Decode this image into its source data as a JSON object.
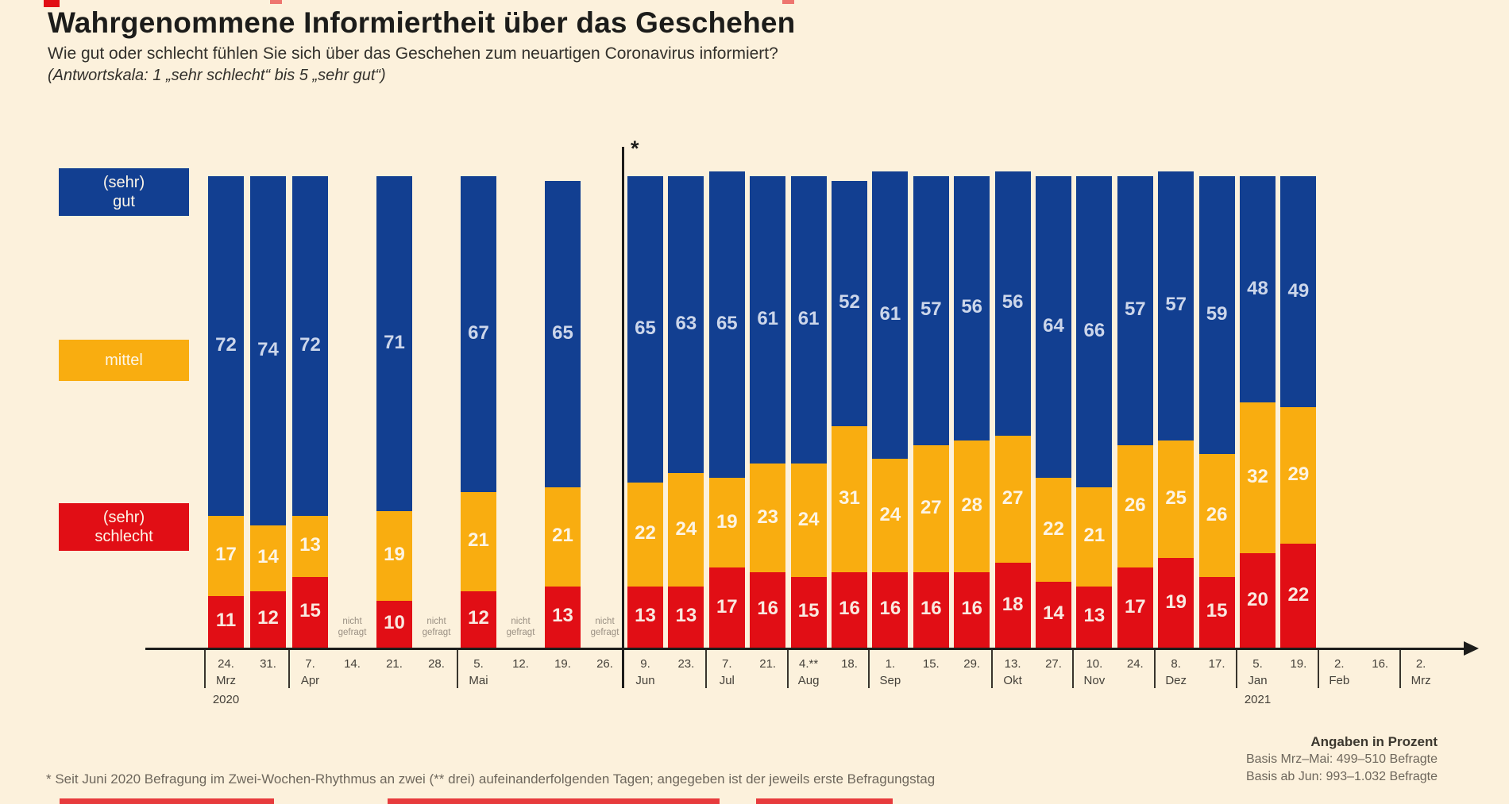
{
  "header": {
    "title": "Wahrgenommene Informiertheit über das Geschehen",
    "subtitle": "Wie gut oder schlecht fühlen Sie sich über das Geschehen zum neuartigen Coronavirus informiert?",
    "scale_note": "(Antwortskala: 1 „sehr schlecht“ bis 5 „sehr gut“)"
  },
  "legend": {
    "gut": "(sehr)\ngut",
    "mittel": "mittel",
    "schlecht": "(sehr)\nschlecht"
  },
  "chart_data": {
    "type": "bar",
    "stacked": true,
    "unit": "Prozent",
    "legend_position": "left",
    "ylim": [
      0,
      100
    ],
    "series": [
      {
        "key": "gut",
        "label": "(sehr) gut",
        "color": "#123f91"
      },
      {
        "key": "mittel",
        "label": "mittel",
        "color": "#f9ad10"
      },
      {
        "key": "schlecht",
        "label": "(sehr) schlecht",
        "color": "#e10e15"
      }
    ],
    "not_asked_label": "nicht\ngefragt",
    "divider_marker": "*",
    "bars": [
      {
        "date": "24.",
        "month": "Mrz",
        "year": "2020",
        "gut": 72,
        "mittel": 17,
        "schlecht": 11
      },
      {
        "date": "31.",
        "gut": 74,
        "mittel": 14,
        "schlecht": 12
      },
      {
        "date": "7.",
        "month": "Apr",
        "gut": 72,
        "mittel": 13,
        "schlecht": 15
      },
      {
        "date": "14.",
        "not_asked": true
      },
      {
        "date": "21.",
        "gut": 71,
        "mittel": 19,
        "schlecht": 10
      },
      {
        "date": "28.",
        "not_asked": true
      },
      {
        "date": "5.",
        "month": "Mai",
        "gut": 67,
        "mittel": 21,
        "schlecht": 12
      },
      {
        "date": "12.",
        "not_asked": true
      },
      {
        "date": "19.",
        "gut": 65,
        "mittel": 21,
        "schlecht": 13
      },
      {
        "date": "26.",
        "not_asked": true
      },
      {
        "date": "9.",
        "month": "Jun",
        "divider_before": true,
        "gut": 65,
        "mittel": 22,
        "schlecht": 13
      },
      {
        "date": "23.",
        "gut": 63,
        "mittel": 24,
        "schlecht": 13
      },
      {
        "date": "7.",
        "month": "Jul",
        "gut": 65,
        "mittel": 19,
        "schlecht": 17
      },
      {
        "date": "21.",
        "gut": 61,
        "mittel": 23,
        "schlecht": 16
      },
      {
        "date": "4.**",
        "month": "Aug",
        "gut": 61,
        "mittel": 24,
        "schlecht": 15
      },
      {
        "date": "18.",
        "gut": 52,
        "mittel": 31,
        "schlecht": 16
      },
      {
        "date": "1.",
        "month": "Sep",
        "gut": 61,
        "mittel": 24,
        "schlecht": 16
      },
      {
        "date": "15.",
        "gut": 57,
        "mittel": 27,
        "schlecht": 16
      },
      {
        "date": "29.",
        "gut": 56,
        "mittel": 28,
        "schlecht": 16
      },
      {
        "date": "13.",
        "month": "Okt",
        "gut": 56,
        "mittel": 27,
        "schlecht": 18
      },
      {
        "date": "27.",
        "gut": 64,
        "mittel": 22,
        "schlecht": 14
      },
      {
        "date": "10.",
        "month": "Nov",
        "gut": 66,
        "mittel": 21,
        "schlecht": 13
      },
      {
        "date": "24.",
        "gut": 57,
        "mittel": 26,
        "schlecht": 17
      },
      {
        "date": "8.",
        "month": "Dez",
        "gut": 57,
        "mittel": 25,
        "schlecht": 19
      },
      {
        "date": "17.",
        "gut": 59,
        "mittel": 26,
        "schlecht": 15
      },
      {
        "date": "5.",
        "month": "Jan",
        "year": "2021",
        "gut": 48,
        "mittel": 32,
        "schlecht": 20
      },
      {
        "date": "19.",
        "gut": 49,
        "mittel": 29,
        "schlecht": 22
      },
      {
        "date": "2.",
        "month": "Feb",
        "empty": true
      },
      {
        "date": "16.",
        "empty": true
      },
      {
        "date": "2.",
        "month": "Mrz",
        "empty": true
      }
    ]
  },
  "footnote": "* Seit Juni 2020 Befragung im Zwei-Wochen-Rhythmus an zwei (** drei) aufeinanderfolgenden Tagen; angegeben ist der jeweils erste Befragungstag",
  "footer": {
    "emphasis": "Angaben in Prozent",
    "basis_line1": "Basis Mrz–Mai: 499–510 Befragte",
    "basis_line2": "Basis ab Jun: 993–1.032 Befragte"
  }
}
